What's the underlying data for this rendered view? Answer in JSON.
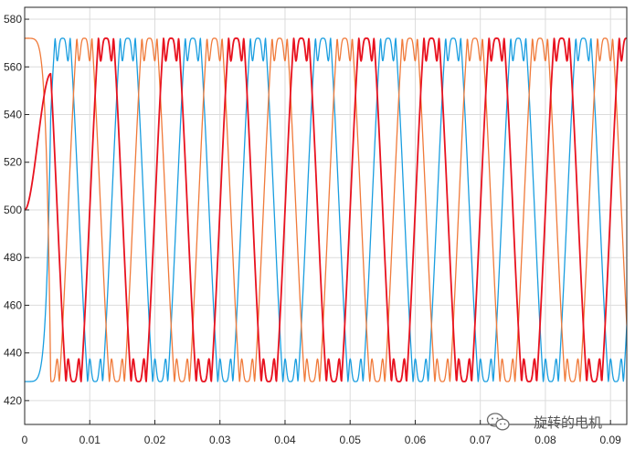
{
  "chart_data": {
    "type": "line",
    "title": "",
    "xlabel": "",
    "ylabel": "",
    "xlim": [
      0,
      0.0925
    ],
    "ylim": [
      410,
      585
    ],
    "grid": true,
    "x_ticks": [
      "0",
      "0.01",
      "0.02",
      "0.03",
      "0.04",
      "0.05",
      "0.06",
      "0.07",
      "0.08",
      "0.09"
    ],
    "y_ticks": [
      "420",
      "440",
      "460",
      "480",
      "500",
      "520",
      "540",
      "560",
      "580"
    ],
    "x_tick_values": [
      0,
      0.01,
      0.02,
      0.03,
      0.04,
      0.05,
      0.06,
      0.07,
      0.08,
      0.09
    ],
    "y_tick_values": [
      420,
      440,
      460,
      480,
      500,
      520,
      540,
      560,
      580
    ],
    "period": 0.01,
    "signal_model": {
      "center": 500,
      "amplitude": 72,
      "top_peak": 572,
      "top_dip": 562.5,
      "bottom_peak": 428,
      "bottom_dip": 437.5
    },
    "series": [
      {
        "color": "#e8121f",
        "phase_offset": 0.0,
        "startup": "ramp",
        "startup_end": 0.004,
        "initial_value": 500
      },
      {
        "color": "#1a9ee0",
        "phase_offset": 0.00667,
        "startup": "hold",
        "startup_end": 0.004,
        "initial_value": 428
      },
      {
        "color": "#f07a3a",
        "phase_offset": 0.00333,
        "startup": "hold",
        "startup_end": 0.004,
        "initial_value": 572
      }
    ]
  },
  "watermark": {
    "text": "旋转的电机",
    "icon": "wechat-icon"
  }
}
